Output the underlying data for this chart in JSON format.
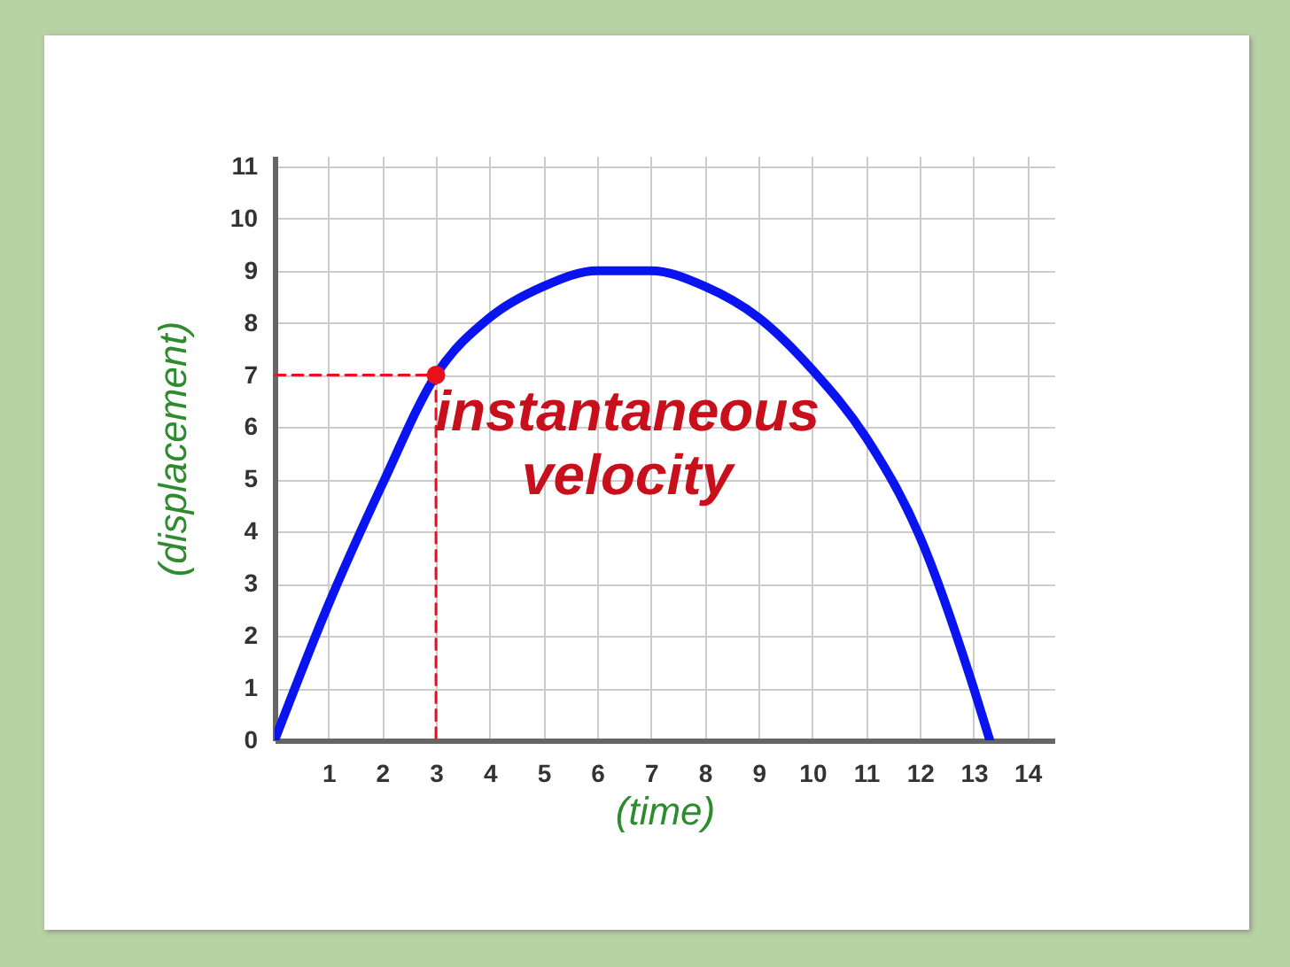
{
  "chart_data": {
    "type": "line",
    "xlabel": "(time)",
    "ylabel": "(displacement)",
    "xlim": [
      0,
      14.5
    ],
    "ylim": [
      0,
      11.2
    ],
    "xticks": [
      1,
      2,
      3,
      4,
      5,
      6,
      7,
      8,
      9,
      10,
      11,
      12,
      13,
      14
    ],
    "yticks": [
      0,
      1,
      2,
      3,
      4,
      5,
      6,
      7,
      8,
      9,
      10,
      11
    ],
    "grid": true,
    "annotations": [
      {
        "text": "instantaneous velocity",
        "x": 3,
        "y": 7
      }
    ],
    "series": [
      {
        "type": "line",
        "color": "#0a14f0",
        "line_style": "solid",
        "marker": "none",
        "x": [
          0,
          1,
          2,
          3,
          4,
          5,
          6,
          7,
          8,
          9,
          10,
          11,
          12,
          13,
          13.3
        ],
        "values": [
          0,
          2.6,
          4.9,
          7,
          8.1,
          8.7,
          9,
          9,
          8.7,
          8.1,
          7.1,
          5.8,
          3.9,
          1,
          0
        ]
      },
      {
        "type": "line",
        "color": "#e8101c",
        "line_style": "dashed",
        "marker": "none",
        "x": [
          0,
          3,
          3
        ],
        "values": [
          7,
          7,
          0
        ]
      },
      {
        "type": "scatter",
        "color": "#e8101c",
        "marker": "circle",
        "x": [
          3
        ],
        "values": [
          7
        ]
      }
    ]
  }
}
